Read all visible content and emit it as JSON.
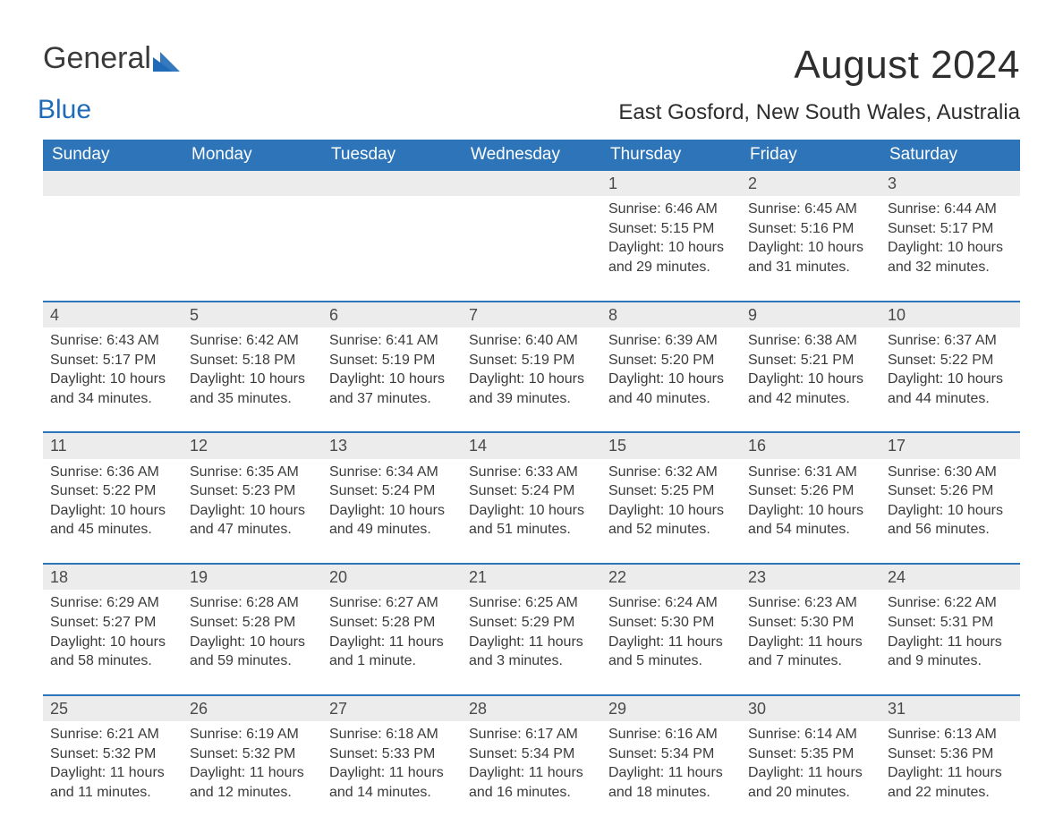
{
  "logo": {
    "word1": "General",
    "word2": "Blue"
  },
  "title": "August 2024",
  "location": "East Gosford, New South Wales, Australia",
  "colors": {
    "header_bg": "#2d74b8",
    "header_text": "#ffffff",
    "stripe_bg": "#ececec",
    "stripe_border": "#2d74b8",
    "body_text": "#3b3b3b",
    "page_bg": "#ffffff",
    "logo_blue": "#1f6bb8"
  },
  "typography": {
    "title_fontsize": 44,
    "location_fontsize": 24,
    "dayheader_fontsize": 19,
    "daynum_fontsize": 18,
    "body_fontsize": 16
  },
  "day_headers": [
    "Sunday",
    "Monday",
    "Tuesday",
    "Wednesday",
    "Thursday",
    "Friday",
    "Saturday"
  ],
  "weeks": [
    [
      null,
      null,
      null,
      null,
      {
        "n": "1",
        "sr": "Sunrise: 6:46 AM",
        "ss": "Sunset: 5:15 PM",
        "dl": "Daylight: 10 hours and 29 minutes."
      },
      {
        "n": "2",
        "sr": "Sunrise: 6:45 AM",
        "ss": "Sunset: 5:16 PM",
        "dl": "Daylight: 10 hours and 31 minutes."
      },
      {
        "n": "3",
        "sr": "Sunrise: 6:44 AM",
        "ss": "Sunset: 5:17 PM",
        "dl": "Daylight: 10 hours and 32 minutes."
      }
    ],
    [
      {
        "n": "4",
        "sr": "Sunrise: 6:43 AM",
        "ss": "Sunset: 5:17 PM",
        "dl": "Daylight: 10 hours and 34 minutes."
      },
      {
        "n": "5",
        "sr": "Sunrise: 6:42 AM",
        "ss": "Sunset: 5:18 PM",
        "dl": "Daylight: 10 hours and 35 minutes."
      },
      {
        "n": "6",
        "sr": "Sunrise: 6:41 AM",
        "ss": "Sunset: 5:19 PM",
        "dl": "Daylight: 10 hours and 37 minutes."
      },
      {
        "n": "7",
        "sr": "Sunrise: 6:40 AM",
        "ss": "Sunset: 5:19 PM",
        "dl": "Daylight: 10 hours and 39 minutes."
      },
      {
        "n": "8",
        "sr": "Sunrise: 6:39 AM",
        "ss": "Sunset: 5:20 PM",
        "dl": "Daylight: 10 hours and 40 minutes."
      },
      {
        "n": "9",
        "sr": "Sunrise: 6:38 AM",
        "ss": "Sunset: 5:21 PM",
        "dl": "Daylight: 10 hours and 42 minutes."
      },
      {
        "n": "10",
        "sr": "Sunrise: 6:37 AM",
        "ss": "Sunset: 5:22 PM",
        "dl": "Daylight: 10 hours and 44 minutes."
      }
    ],
    [
      {
        "n": "11",
        "sr": "Sunrise: 6:36 AM",
        "ss": "Sunset: 5:22 PM",
        "dl": "Daylight: 10 hours and 45 minutes."
      },
      {
        "n": "12",
        "sr": "Sunrise: 6:35 AM",
        "ss": "Sunset: 5:23 PM",
        "dl": "Daylight: 10 hours and 47 minutes."
      },
      {
        "n": "13",
        "sr": "Sunrise: 6:34 AM",
        "ss": "Sunset: 5:24 PM",
        "dl": "Daylight: 10 hours and 49 minutes."
      },
      {
        "n": "14",
        "sr": "Sunrise: 6:33 AM",
        "ss": "Sunset: 5:24 PM",
        "dl": "Daylight: 10 hours and 51 minutes."
      },
      {
        "n": "15",
        "sr": "Sunrise: 6:32 AM",
        "ss": "Sunset: 5:25 PM",
        "dl": "Daylight: 10 hours and 52 minutes."
      },
      {
        "n": "16",
        "sr": "Sunrise: 6:31 AM",
        "ss": "Sunset: 5:26 PM",
        "dl": "Daylight: 10 hours and 54 minutes."
      },
      {
        "n": "17",
        "sr": "Sunrise: 6:30 AM",
        "ss": "Sunset: 5:26 PM",
        "dl": "Daylight: 10 hours and 56 minutes."
      }
    ],
    [
      {
        "n": "18",
        "sr": "Sunrise: 6:29 AM",
        "ss": "Sunset: 5:27 PM",
        "dl": "Daylight: 10 hours and 58 minutes."
      },
      {
        "n": "19",
        "sr": "Sunrise: 6:28 AM",
        "ss": "Sunset: 5:28 PM",
        "dl": "Daylight: 10 hours and 59 minutes."
      },
      {
        "n": "20",
        "sr": "Sunrise: 6:27 AM",
        "ss": "Sunset: 5:28 PM",
        "dl": "Daylight: 11 hours and 1 minute."
      },
      {
        "n": "21",
        "sr": "Sunrise: 6:25 AM",
        "ss": "Sunset: 5:29 PM",
        "dl": "Daylight: 11 hours and 3 minutes."
      },
      {
        "n": "22",
        "sr": "Sunrise: 6:24 AM",
        "ss": "Sunset: 5:30 PM",
        "dl": "Daylight: 11 hours and 5 minutes."
      },
      {
        "n": "23",
        "sr": "Sunrise: 6:23 AM",
        "ss": "Sunset: 5:30 PM",
        "dl": "Daylight: 11 hours and 7 minutes."
      },
      {
        "n": "24",
        "sr": "Sunrise: 6:22 AM",
        "ss": "Sunset: 5:31 PM",
        "dl": "Daylight: 11 hours and 9 minutes."
      }
    ],
    [
      {
        "n": "25",
        "sr": "Sunrise: 6:21 AM",
        "ss": "Sunset: 5:32 PM",
        "dl": "Daylight: 11 hours and 11 minutes."
      },
      {
        "n": "26",
        "sr": "Sunrise: 6:19 AM",
        "ss": "Sunset: 5:32 PM",
        "dl": "Daylight: 11 hours and 12 minutes."
      },
      {
        "n": "27",
        "sr": "Sunrise: 6:18 AM",
        "ss": "Sunset: 5:33 PM",
        "dl": "Daylight: 11 hours and 14 minutes."
      },
      {
        "n": "28",
        "sr": "Sunrise: 6:17 AM",
        "ss": "Sunset: 5:34 PM",
        "dl": "Daylight: 11 hours and 16 minutes."
      },
      {
        "n": "29",
        "sr": "Sunrise: 6:16 AM",
        "ss": "Sunset: 5:34 PM",
        "dl": "Daylight: 11 hours and 18 minutes."
      },
      {
        "n": "30",
        "sr": "Sunrise: 6:14 AM",
        "ss": "Sunset: 5:35 PM",
        "dl": "Daylight: 11 hours and 20 minutes."
      },
      {
        "n": "31",
        "sr": "Sunrise: 6:13 AM",
        "ss": "Sunset: 5:36 PM",
        "dl": "Daylight: 11 hours and 22 minutes."
      }
    ]
  ]
}
